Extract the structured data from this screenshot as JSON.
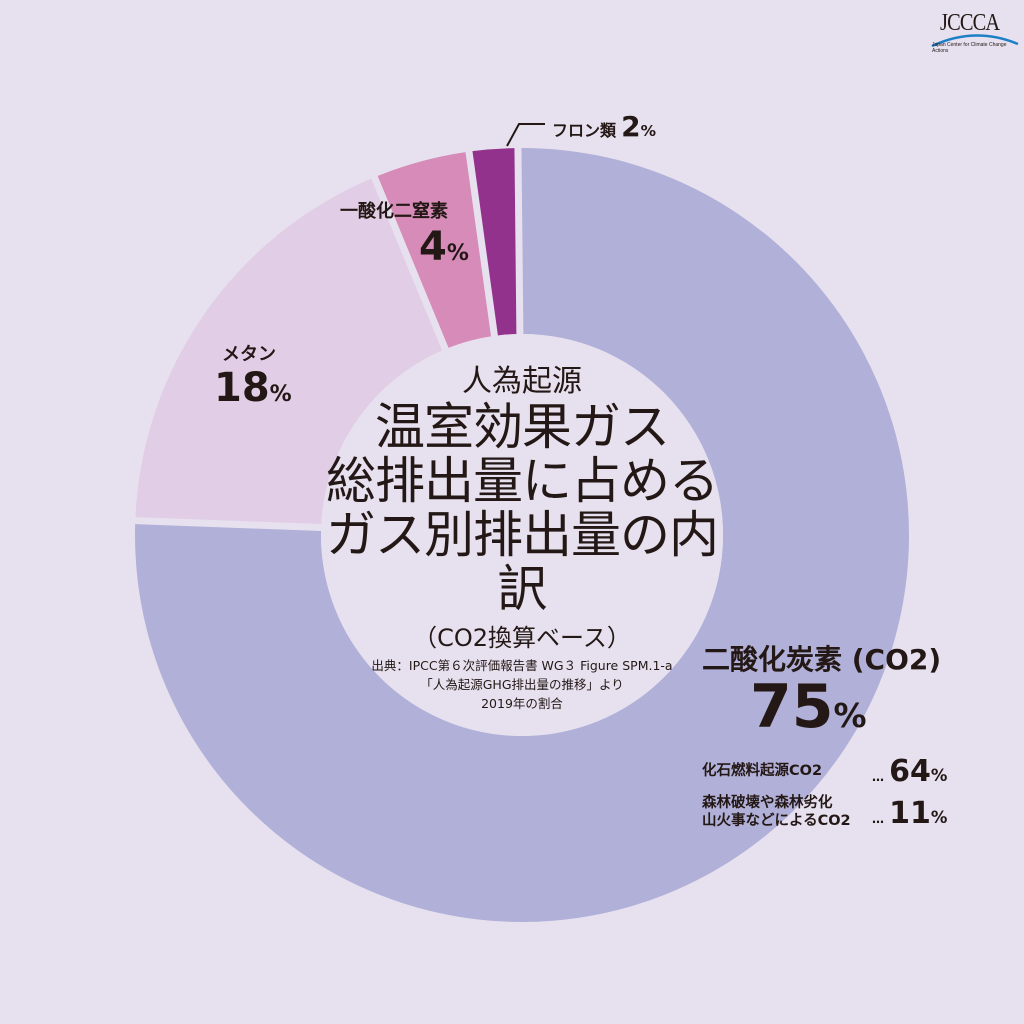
{
  "logo": {
    "text": "JCCCA",
    "subtitle": "Japan Center for Climate Change Actions"
  },
  "center": {
    "line1": "人為起源",
    "line2": "温室効果ガス",
    "line3": "総排出量に占める",
    "line4": "ガス別排出量の内訳",
    "line5": "（CO2換算ベース）",
    "source1": "出典：IPCC第６次評価報告書 WG３ Figure SPM.1-a",
    "source2": "「人為起源GHG排出量の推移」より",
    "source3": "2019年の割合"
  },
  "labels": {
    "co2": {
      "name": "二酸化炭素 (CO2)",
      "value": "75",
      "unit": "%"
    },
    "co2_fossil": {
      "name": "化石燃料起源CO2",
      "dots": "…",
      "value": "64",
      "unit": "%"
    },
    "co2_forest": {
      "name1": "森林破壊や森林劣化",
      "name2": "山火事などによるCO2",
      "dots": "…",
      "value": "11",
      "unit": "%"
    },
    "methane": {
      "name": "メタン",
      "value": "18",
      "unit": "%"
    },
    "n2o": {
      "name": "一酸化二窒素",
      "value": "4",
      "unit": "%"
    },
    "fgas": {
      "name": "フロン類",
      "value": "2",
      "unit": "%"
    }
  },
  "chart_data": {
    "type": "pie",
    "subtype": "donut",
    "title": "人為起源 温室効果ガス総排出量に占めるガス別排出量の内訳（CO2換算ベース）",
    "subtitle": "出典：IPCC第６次評価報告書 WG３ Figure SPM.1-a「人為起源GHG排出量の推移」より 2019年の割合",
    "categories": [
      "二酸化炭素 (CO2)",
      "メタン",
      "一酸化二窒素",
      "フロン類"
    ],
    "values": [
      75,
      18,
      4,
      2
    ],
    "unit": "%",
    "colors": [
      "#b1b0d8",
      "#e1cde5",
      "#d68bb8",
      "#92328c"
    ],
    "start_angle_deg": 0,
    "direction": "clockwise",
    "breakdown": {
      "parent": "二酸化炭素 (CO2)",
      "categories": [
        "化石燃料起源CO2",
        "森林破壊や森林劣化 山火事などによるCO2"
      ],
      "values": [
        64,
        11
      ]
    },
    "legend": "none (direct labels)",
    "background": "#e7e1ef"
  }
}
